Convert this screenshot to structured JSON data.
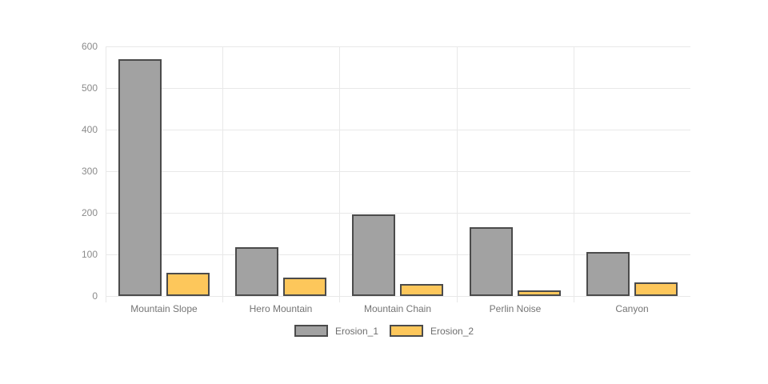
{
  "chart_data": {
    "type": "bar",
    "title": "",
    "categories": [
      "Mountain Slope",
      "Hero Mountain",
      "Mountain Chain",
      "Perlin Noise",
      "Canyon"
    ],
    "series": [
      {
        "name": "Erosion_1",
        "values": [
          570,
          117,
          196,
          165,
          106
        ],
        "fill": "#a2a2a2",
        "border": "#4b4b4b"
      },
      {
        "name": "Erosion_2",
        "values": [
          55,
          45,
          28,
          13,
          33
        ],
        "fill": "#fdc75b",
        "border": "#4b4b4b"
      }
    ],
    "ylim": [
      0,
      600
    ],
    "yticks": [
      0,
      100,
      200,
      300,
      400,
      500,
      600
    ],
    "grid": true,
    "legend_position": "bottom",
    "colors": {
      "gridline": "#e8e8e8",
      "ytick_label": "#8b8b8b",
      "xtick_label": "#757575",
      "legend_label": "#6e6e6e",
      "background": "#ffffff"
    }
  }
}
